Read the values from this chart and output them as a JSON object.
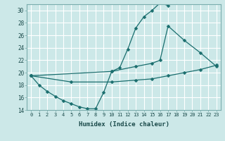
{
  "xlabel": "Humidex (Indice chaleur)",
  "background_color": "#cce8e8",
  "grid_color": "#ffffff",
  "line_color": "#1a6e6e",
  "xlim": [
    -0.5,
    23.5
  ],
  "ylim": [
    14,
    31
  ],
  "xticks": [
    0,
    1,
    2,
    3,
    4,
    5,
    6,
    7,
    8,
    9,
    10,
    11,
    12,
    13,
    14,
    15,
    16,
    17,
    18,
    19,
    20,
    21,
    22,
    23
  ],
  "yticks": [
    14,
    16,
    18,
    20,
    22,
    24,
    26,
    28,
    30
  ],
  "line1_x": [
    0,
    1,
    2,
    3,
    4,
    5,
    6,
    7,
    8,
    9,
    10,
    11,
    12,
    13,
    14,
    15,
    16,
    17
  ],
  "line1_y": [
    19.5,
    18.0,
    17.0,
    16.2,
    15.5,
    15.0,
    14.5,
    14.2,
    14.2,
    16.8,
    20.2,
    20.8,
    23.8,
    27.2,
    29.0,
    30.0,
    31.2,
    30.8
  ],
  "line2_x": [
    0,
    10,
    13,
    15,
    16,
    17,
    19,
    21,
    23
  ],
  "line2_y": [
    19.5,
    20.2,
    21.0,
    21.5,
    22.0,
    27.5,
    25.2,
    23.2,
    21.0
  ],
  "line3_x": [
    0,
    5,
    10,
    13,
    15,
    17,
    19,
    21,
    23
  ],
  "line3_y": [
    19.5,
    18.5,
    18.5,
    18.8,
    19.0,
    19.5,
    20.0,
    20.5,
    21.2
  ]
}
